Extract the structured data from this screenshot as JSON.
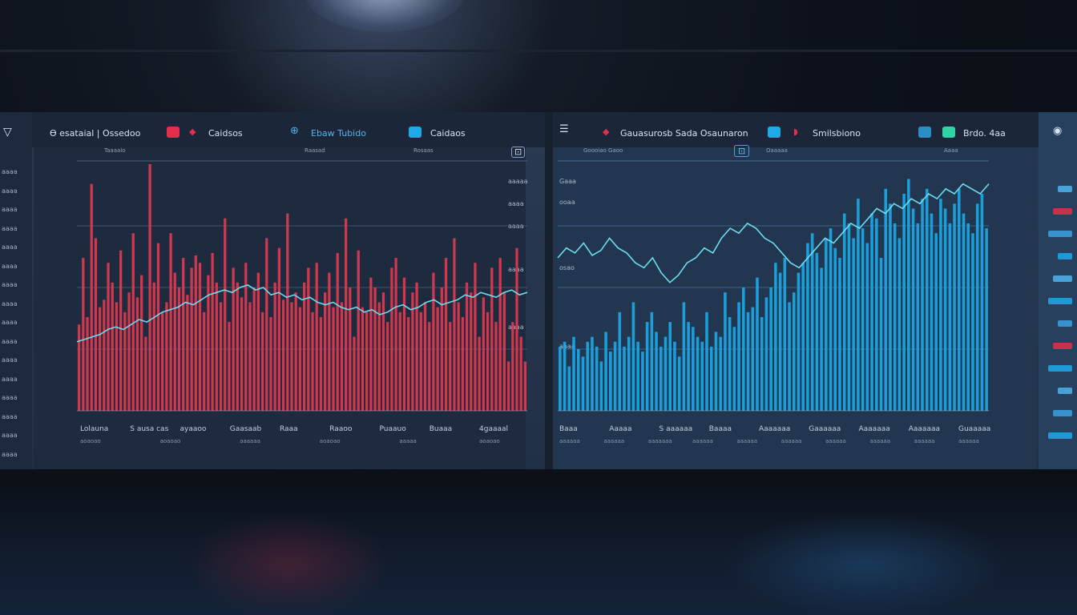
{
  "header": {
    "left_app_title": "Ѳ esataial | Ossedoo",
    "left_tab_2": "Caidsos",
    "left_tab_3": "Ebaw Tubido",
    "left_tab_4": "Caidaos",
    "right_app_title": "Gauasurosb Sada Osaunaron",
    "right_tab_2": "Smilsbiono",
    "right_tab_3": "Brdo. 4aa",
    "red_accent": "#e2304a",
    "blue_accent": "#1ea9e8",
    "teal_accent": "#2fd3a8"
  },
  "left_chart": {
    "sub_labels": [
      "Taaaalo",
      "Raasad",
      "Rosaas"
    ],
    "y_ticks": [
      "aaaaa",
      "aaaa",
      "aaaa",
      "aaaa",
      "aaaa"
    ],
    "x_labels": [
      "Lolauna",
      "S ausa cas",
      "ayaaoo",
      "Gaasaab",
      "Raaa",
      "Raaoo",
      "Puaauo",
      "Buaaa",
      "4gaaaal"
    ],
    "x_sub_labels": [
      "aoaoao",
      "aoaoao",
      "aaaaaa",
      "aoaoao",
      "aaaaa",
      "aoaoao"
    ]
  },
  "right_chart": {
    "sub_labels": [
      "Goooiao Gaoo",
      "Oaaaaa",
      "Aaaa"
    ],
    "y_ticks": [
      "Gaaa",
      "ooaa",
      "osao",
      "aaaa"
    ],
    "x_labels": [
      "Baaa",
      "Aaaaa",
      "S aaaaaa",
      "Baaaa",
      "Aaaaaaa",
      "Gaaaaaa",
      "Aaaaaaa",
      "Aaaaaaa",
      "Guaaaaa"
    ],
    "x_sub_labels": [
      "aaaaaa",
      "aaaaaa",
      "aaaaaaa",
      "aaaaaa",
      "aaaaaa",
      "aaaaaa",
      "aaaaaa",
      "aaaaaa",
      "aaaaaa",
      "aaaaaa"
    ]
  },
  "left_rail": {
    "items": [
      "aaaa",
      "aaaa",
      "aaaa",
      "aaaa",
      "aaaa",
      "aaaa",
      "aaaa",
      "aaaa",
      "aaaa",
      "aaaa",
      "aaaa",
      "aaaa",
      "aaaa",
      "aaaa",
      "aaaa",
      "aaaa"
    ]
  },
  "chart_data": [
    {
      "type": "bar",
      "title": "",
      "color": "#e2384f",
      "ylim": [
        0,
        100
      ],
      "values": [
        35,
        62,
        38,
        92,
        70,
        42,
        45,
        60,
        52,
        44,
        65,
        40,
        48,
        72,
        46,
        55,
        30,
        100,
        52,
        68,
        40,
        44,
        72,
        56,
        50,
        62,
        47,
        58,
        63,
        60,
        40,
        55,
        64,
        52,
        44,
        78,
        36,
        58,
        52,
        46,
        60,
        44,
        50,
        56,
        40,
        70,
        38,
        52,
        66,
        45,
        80,
        44,
        48,
        42,
        52,
        58,
        40,
        60,
        38,
        48,
        56,
        42,
        64,
        44,
        78,
        50,
        30,
        65,
        42,
        40,
        54,
        50,
        44,
        48,
        36,
        58,
        62,
        40,
        54,
        38,
        48,
        52,
        40,
        44,
        36,
        56,
        42,
        50,
        62,
        36,
        70,
        44,
        38,
        52,
        48,
        60,
        30,
        46,
        40,
        58,
        36,
        62,
        48,
        20,
        36,
        66,
        30,
        20
      ],
      "overlay_line": [
        28,
        29,
        30,
        31,
        33,
        34,
        33,
        35,
        37,
        36,
        38,
        40,
        41,
        42,
        44,
        43,
        45,
        47,
        48,
        49,
        48,
        50,
        51,
        49,
        50,
        47,
        48,
        46,
        47,
        45,
        46,
        44,
        43,
        44,
        42,
        41,
        42,
        40,
        41,
        39,
        40,
        42,
        43,
        41,
        42,
        44,
        45,
        43,
        44,
        45,
        47,
        46,
        48,
        47,
        46,
        48,
        49,
        47,
        48
      ]
    },
    {
      "type": "bar",
      "title": "",
      "color": "#1aa8e6",
      "ylim": [
        0,
        100
      ],
      "values": [
        26,
        28,
        18,
        30,
        25,
        22,
        28,
        30,
        26,
        20,
        32,
        24,
        28,
        40,
        26,
        30,
        44,
        28,
        24,
        36,
        40,
        32,
        26,
        30,
        36,
        28,
        22,
        44,
        36,
        34,
        30,
        28,
        40,
        26,
        32,
        30,
        48,
        38,
        34,
        44,
        50,
        40,
        42,
        54,
        38,
        46,
        50,
        60,
        56,
        62,
        44,
        48,
        56,
        60,
        68,
        72,
        64,
        58,
        70,
        74,
        66,
        62,
        80,
        76,
        70,
        86,
        74,
        68,
        80,
        78,
        62,
        90,
        84,
        76,
        70,
        88,
        94,
        82,
        76,
        86,
        90,
        80,
        72,
        86,
        82,
        76,
        84,
        90,
        80,
        76,
        72,
        84,
        88,
        74
      ],
      "overlay_line": [
        62,
        66,
        64,
        68,
        63,
        65,
        70,
        66,
        64,
        60,
        58,
        62,
        56,
        52,
        55,
        60,
        62,
        66,
        64,
        70,
        74,
        72,
        76,
        74,
        70,
        68,
        64,
        60,
        58,
        62,
        66,
        70,
        68,
        72,
        76,
        74,
        78,
        82,
        80,
        84,
        82,
        86,
        84,
        88,
        86,
        90,
        88,
        92,
        90,
        88,
        92
      ]
    }
  ]
}
